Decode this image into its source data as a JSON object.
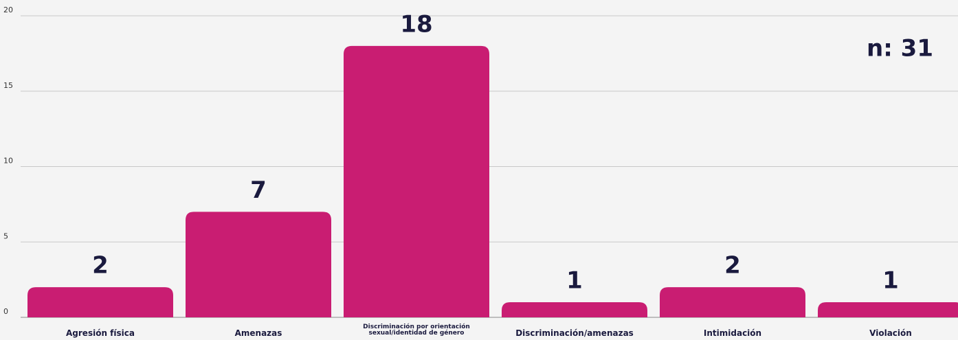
{
  "chart_data": {
    "type": "bar",
    "annotation": "n: 31",
    "categories": [
      "Agresión física",
      "Amenazas",
      "Discriminación por orientación sexual/identidad de género",
      "Discriminación/amenazas",
      "Intimidación",
      "Violación"
    ],
    "values": [
      2,
      7,
      18,
      1,
      2,
      1
    ],
    "color": "#c91d72",
    "ylim": [
      0,
      20
    ],
    "yticks": [
      0,
      5,
      10,
      15,
      20
    ],
    "grid": true
  }
}
